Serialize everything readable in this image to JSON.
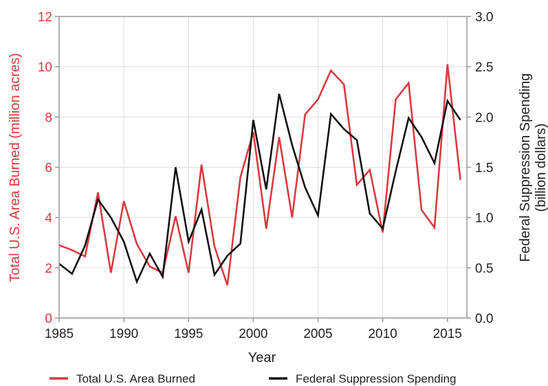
{
  "chart_data": {
    "type": "line",
    "title": "",
    "xlabel": "Year",
    "ylabel": "Total U.S. Area Burned (million acres)",
    "y2label_line1": "Federal Suppression Spending",
    "y2label_line2": "(billion dollars)",
    "xlim": [
      1985,
      2016.5
    ],
    "ylim": [
      0,
      12
    ],
    "y2lim": [
      0,
      3
    ],
    "xticks": [
      1985,
      1990,
      1995,
      2000,
      2005,
      2010,
      2015
    ],
    "yticks": [
      0,
      2,
      4,
      6,
      8,
      10,
      12
    ],
    "y2ticks": [
      "0.0",
      "0.5",
      "1.0",
      "1.5",
      "2.0",
      "2.5",
      "3.0"
    ],
    "grid": true,
    "legend_position": "bottom",
    "left_axis_color": "#d93a3f",
    "x": [
      1985,
      1986,
      1987,
      1988,
      1989,
      1990,
      1991,
      1992,
      1993,
      1994,
      1995,
      1996,
      1997,
      1998,
      1999,
      2000,
      2001,
      2002,
      2003,
      2004,
      2005,
      2006,
      2007,
      2008,
      2009,
      2010,
      2011,
      2012,
      2013,
      2014,
      2015,
      2016
    ],
    "series": [
      {
        "name": "Total U.S. Area Burned",
        "axis": "left",
        "color": "#d93a3f",
        "values": [
          2.9,
          2.7,
          2.45,
          5.0,
          1.8,
          4.65,
          2.95,
          2.05,
          1.8,
          4.05,
          1.8,
          6.1,
          2.85,
          1.3,
          5.6,
          7.4,
          3.55,
          7.2,
          4.0,
          8.1,
          8.7,
          9.85,
          9.3,
          5.3,
          5.9,
          3.4,
          8.7,
          9.35,
          4.3,
          3.6,
          10.1,
          5.5
        ]
      },
      {
        "name": "Federal Suppression Spending",
        "axis": "right",
        "color": "#111111",
        "values": [
          0.54,
          0.44,
          0.72,
          1.18,
          1.0,
          0.76,
          0.36,
          0.64,
          0.41,
          1.5,
          0.76,
          1.08,
          0.43,
          0.62,
          0.74,
          1.97,
          1.28,
          2.23,
          1.72,
          1.3,
          1.02,
          2.03,
          1.88,
          1.77,
          1.04,
          0.89,
          1.46,
          1.99,
          1.8,
          1.54,
          2.16,
          1.97
        ]
      }
    ]
  }
}
